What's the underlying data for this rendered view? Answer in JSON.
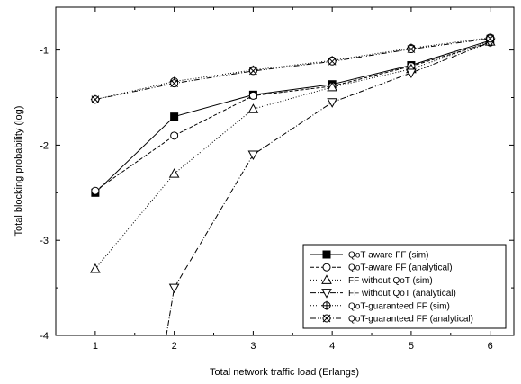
{
  "chart_data": {
    "type": "line",
    "xlabel": "Total network traffic load (Erlangs)",
    "ylabel": "Total blocking probability (log)",
    "xlim": [
      0.5,
      6.3
    ],
    "ylim": [
      -4,
      -0.55
    ],
    "xticks": [
      1,
      2,
      3,
      4,
      5,
      6
    ],
    "yticks": [
      -4,
      -3,
      -2,
      -1
    ],
    "x": [
      1,
      2,
      3,
      4,
      5,
      6
    ],
    "legend_position": "bottom-right",
    "grid": false,
    "series": [
      {
        "name": "QoT-aware FF (sim)",
        "marker": "square-filled",
        "dash": "solid",
        "x": [
          1,
          2,
          3,
          4,
          5,
          6
        ],
        "values": [
          -2.5,
          -1.7,
          -1.47,
          -1.36,
          -1.16,
          -0.9
        ]
      },
      {
        "name": "QoT-aware FF (analytical)",
        "marker": "circle-open",
        "dash": "dashed",
        "x": [
          1,
          2,
          3,
          4,
          5,
          6
        ],
        "values": [
          -2.48,
          -1.9,
          -1.48,
          -1.38,
          -1.17,
          -0.92
        ]
      },
      {
        "name": "FF without QoT (sim)",
        "marker": "triangle-up-open",
        "dash": "dotted",
        "x": [
          1,
          2,
          3,
          4,
          5,
          6
        ],
        "values": [
          -3.3,
          -2.3,
          -1.62,
          -1.39,
          -1.2,
          -0.91
        ]
      },
      {
        "name": "FF without QoT (analytical)",
        "marker": "triangle-down-open",
        "dash": "dashdot",
        "x": [
          1.9,
          2,
          3,
          4,
          5,
          6
        ],
        "values": [
          -4.0,
          -3.5,
          -2.1,
          -1.55,
          -1.24,
          -0.92
        ]
      },
      {
        "name": "QoT-guaranteed FF (sim)",
        "marker": "circle-plus",
        "dash": "dotted",
        "x": [
          1,
          2,
          3,
          4,
          5,
          6
        ],
        "values": [
          -1.52,
          -1.33,
          -1.21,
          -1.11,
          -0.98,
          -0.87
        ]
      },
      {
        "name": "QoT-guaranteed FF (analytical)",
        "marker": "circle-x",
        "dash": "dashdotdot",
        "x": [
          1,
          2,
          3,
          4,
          5,
          6
        ],
        "values": [
          -1.52,
          -1.35,
          -1.22,
          -1.12,
          -0.99,
          -0.88
        ]
      }
    ]
  }
}
